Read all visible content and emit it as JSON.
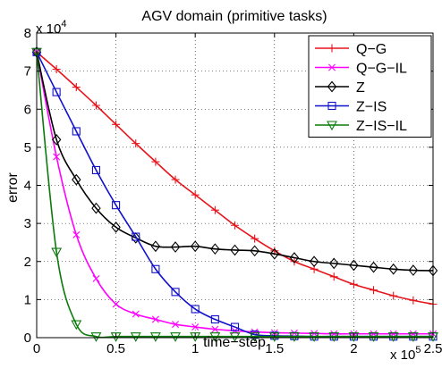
{
  "chart_data": {
    "type": "line",
    "title": "AGV domain (primitive tasks)",
    "xlabel": "time−step",
    "ylabel": "error",
    "x_multiplier": "x 10",
    "x_multiplier_exp": "5",
    "y_multiplier": "x 10",
    "y_multiplier_exp": "4",
    "xlim": [
      0,
      2.5
    ],
    "ylim": [
      0,
      8
    ],
    "xticks": [
      "0",
      "0.5",
      "1",
      "1.5",
      "2",
      "2.5"
    ],
    "yticks": [
      "0",
      "1",
      "2",
      "3",
      "4",
      "5",
      "6",
      "7",
      "8"
    ],
    "x": [
      0,
      0.125,
      0.25,
      0.375,
      0.5,
      0.625,
      0.75,
      0.875,
      1.0,
      1.125,
      1.25,
      1.375,
      1.5,
      1.625,
      1.75,
      1.875,
      2.0,
      2.125,
      2.25,
      2.375,
      2.5
    ],
    "grid": true,
    "legend_position": "top-right",
    "series": [
      {
        "name": "Q−G",
        "color": "#e8141b",
        "marker": "plus",
        "values": [
          7.5,
          7.05,
          6.58,
          6.1,
          5.6,
          5.1,
          4.62,
          4.15,
          3.75,
          3.35,
          2.95,
          2.6,
          2.28,
          2.0,
          1.8,
          1.6,
          1.4,
          1.25,
          1.1,
          0.98,
          0.88
        ]
      },
      {
        "name": "Q−G−IL",
        "color": "#ff00ff",
        "marker": "x",
        "values": [
          7.5,
          4.75,
          2.7,
          1.55,
          0.88,
          0.62,
          0.48,
          0.35,
          0.28,
          0.22,
          0.18,
          0.15,
          0.13,
          0.12,
          0.11,
          0.1,
          0.1,
          0.1,
          0.1,
          0.1,
          0.1
        ]
      },
      {
        "name": "Z",
        "color": "#000000",
        "marker": "diamond",
        "values": [
          7.5,
          5.2,
          4.15,
          3.4,
          2.9,
          2.62,
          2.4,
          2.38,
          2.4,
          2.33,
          2.3,
          2.28,
          2.2,
          2.1,
          2.0,
          1.95,
          1.9,
          1.85,
          1.8,
          1.77,
          1.76
        ]
      },
      {
        "name": "Z−IS",
        "color": "#1111cc",
        "marker": "square",
        "values": [
          7.5,
          6.45,
          5.42,
          4.4,
          3.48,
          2.65,
          1.8,
          1.2,
          0.75,
          0.48,
          0.28,
          0.08,
          0.05,
          0.04,
          0.03,
          0.03,
          0.03,
          0.03,
          0.03,
          0.03,
          0.03
        ]
      },
      {
        "name": "Z−IS−IL",
        "color": "#0a7a0a",
        "marker": "triangle-down",
        "values": [
          7.5,
          2.25,
          0.35,
          0.03,
          0.03,
          0.03,
          0.03,
          0.03,
          0.03,
          0.03,
          0.03,
          0.03,
          0.03,
          0.03,
          0.03,
          0.03,
          0.03,
          0.03,
          0.03,
          0.03,
          0.03
        ]
      }
    ]
  }
}
